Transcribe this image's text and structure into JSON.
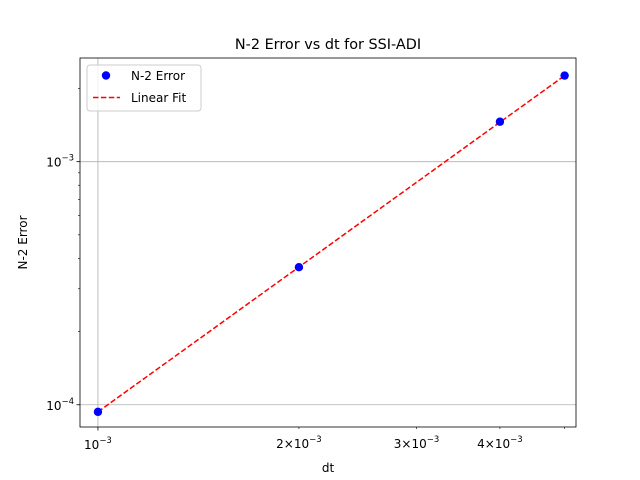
{
  "chart_data": {
    "type": "scatter",
    "title": "N-2 Error vs dt for SSI-ADI",
    "xlabel": "dt",
    "ylabel": "N-2 Error",
    "xscale": "log",
    "yscale": "log",
    "xlim": [
      0.00094,
      0.0052
    ],
    "ylim": [
      8.1e-05,
      0.00267
    ],
    "grid": "major",
    "legend_position": "upper-left",
    "x_major_ticks": [
      {
        "value": 0.001,
        "mantissa": "",
        "exponent": "−3"
      }
    ],
    "x_minor_ticks": [
      {
        "value": 0.002,
        "mantissa": "2×",
        "exponent": "−3"
      },
      {
        "value": 0.003,
        "mantissa": "3×",
        "exponent": "−3"
      },
      {
        "value": 0.004,
        "mantissa": "4×",
        "exponent": "−3"
      }
    ],
    "x_minor_unlabeled": [
      0.005
    ],
    "y_major_ticks": [
      {
        "value": 0.0001,
        "mantissa": "",
        "exponent": "−4"
      },
      {
        "value": 0.001,
        "mantissa": "",
        "exponent": "−3"
      }
    ],
    "y_minor_unlabeled": [
      0.0002,
      0.0003,
      0.0004,
      0.0005,
      0.0006,
      0.0007,
      0.0008,
      0.0009,
      0.002
    ],
    "tick_base": "10",
    "series": [
      {
        "name": "N-2 Error",
        "kind": "points",
        "color": "#0000ff",
        "x": [
          0.001,
          0.002,
          0.004,
          0.005
        ],
        "y": [
          9.35e-05,
          0.000368,
          0.00146,
          0.00226
        ]
      },
      {
        "name": "Linear Fit",
        "kind": "dashed-line",
        "color": "#ff0000",
        "x": [
          0.001,
          0.005
        ],
        "y": [
          9.35e-05,
          0.00226
        ]
      }
    ]
  }
}
